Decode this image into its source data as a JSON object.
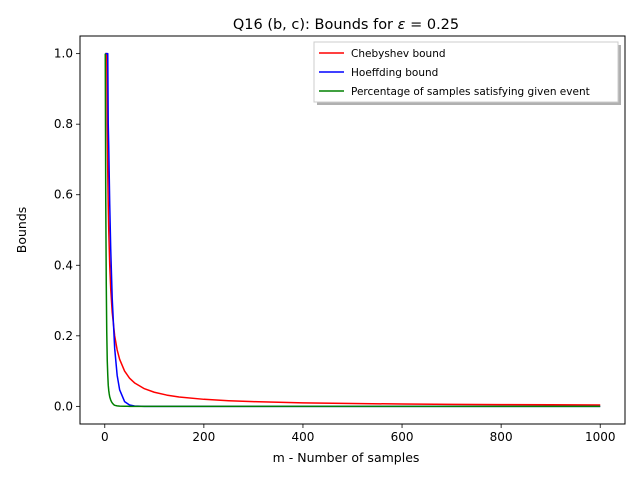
{
  "chart_data": {
    "type": "line",
    "title": "Q16 (b, c): Bounds for ε = 0.25",
    "title_prefix": "Q16 (b, c): Bounds for ",
    "title_symbol": "ε",
    "title_suffix": " = 0.25",
    "xlabel": "m - Number of samples",
    "ylabel": "Bounds",
    "xlim": [
      -50,
      1050
    ],
    "ylim": [
      -0.05,
      1.05
    ],
    "xticks": [
      0,
      200,
      400,
      600,
      800,
      1000
    ],
    "yticks": [
      0.0,
      0.2,
      0.4,
      0.6,
      0.8,
      1.0
    ],
    "xtick_labels": [
      "0",
      "200",
      "400",
      "600",
      "800",
      "1000"
    ],
    "ytick_labels": [
      "0.0",
      "0.2",
      "0.4",
      "0.6",
      "0.8",
      "1.0"
    ],
    "grid": false,
    "legend_position": "top-right",
    "series": [
      {
        "name": "Chebyshev bound",
        "color": "#ff0000",
        "x": [
          1,
          2,
          3,
          4,
          5,
          6,
          7,
          8,
          10,
          12,
          15,
          20,
          25,
          30,
          40,
          50,
          60,
          80,
          100,
          125,
          150,
          200,
          250,
          300,
          400,
          500,
          600,
          700,
          800,
          900,
          1000
        ],
        "y": [
          1.0,
          1.0,
          1.0,
          1.0,
          0.8,
          0.6667,
          0.5714,
          0.5,
          0.4,
          0.3333,
          0.2667,
          0.2,
          0.16,
          0.1333,
          0.1,
          0.08,
          0.0667,
          0.05,
          0.04,
          0.032,
          0.0267,
          0.02,
          0.016,
          0.0133,
          0.01,
          0.008,
          0.0067,
          0.0057,
          0.005,
          0.0044,
          0.004
        ]
      },
      {
        "name": "Hoeffding bound",
        "color": "#0000ff",
        "x": [
          1,
          2,
          3,
          4,
          5,
          6,
          7,
          8,
          10,
          12,
          15,
          20,
          25,
          30,
          40,
          50,
          60,
          80,
          100,
          200,
          400,
          600,
          800,
          1000
        ],
        "y": [
          1.0,
          1.0,
          1.0,
          1.0,
          1.0,
          1.0,
          0.8,
          0.7358,
          0.573,
          0.4463,
          0.3067,
          0.1642,
          0.0879,
          0.047,
          0.0135,
          0.0039,
          0.0011,
          0.0001,
          0.0,
          0.0,
          0.0,
          0.0,
          0.0,
          0.0
        ]
      },
      {
        "name": "Percentage of samples satisfying given event",
        "color": "#008000",
        "x": [
          1,
          2,
          3,
          4,
          5,
          6,
          7,
          8,
          9,
          10,
          12,
          14,
          16,
          18,
          20,
          25,
          30,
          40,
          50,
          60,
          80,
          100,
          200,
          400,
          600,
          800,
          1000
        ],
        "y": [
          1.0,
          0.58,
          0.35,
          0.21,
          0.13,
          0.09,
          0.06,
          0.045,
          0.035,
          0.027,
          0.018,
          0.012,
          0.008,
          0.005,
          0.003,
          0.0015,
          0.0008,
          0.0003,
          0.0001,
          0.0,
          0.0,
          0.0,
          0.0,
          0.0,
          0.0,
          0.0,
          0.0
        ]
      }
    ]
  }
}
